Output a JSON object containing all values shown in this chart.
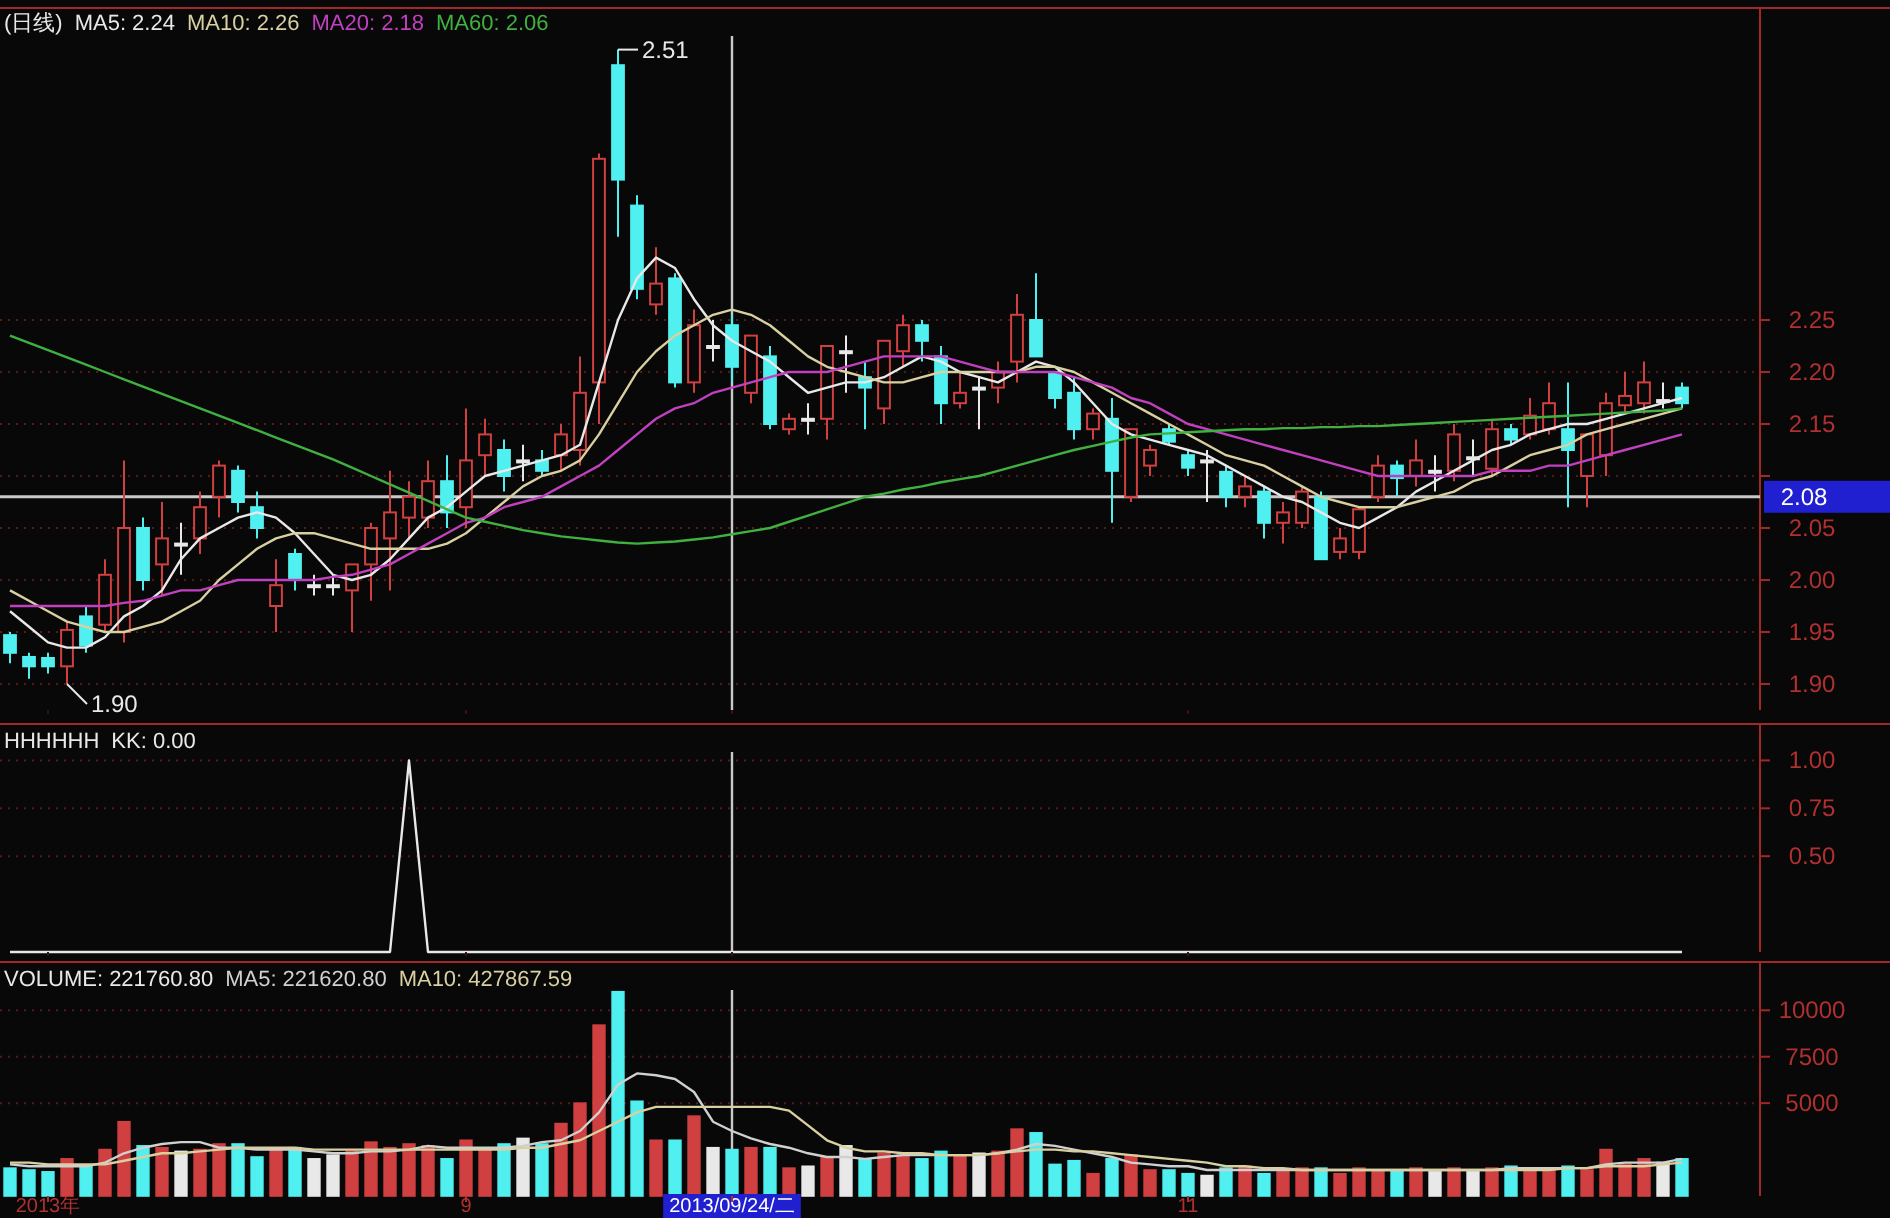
{
  "chart_data": [
    {
      "type": "candlestick",
      "title": "(日线)",
      "tick_labels": "y",
      "grid": "y",
      "ylim": [
        1.875,
        2.55
      ],
      "yticks": [
        {
          "value": 1.9,
          "label": "1.90"
        },
        {
          "value": 1.95,
          "label": "1.95"
        },
        {
          "value": 2.0,
          "label": "2.00"
        },
        {
          "value": 2.05,
          "label": "2.05"
        },
        {
          "value": 2.1,
          "label": null
        },
        {
          "value": 2.15,
          "label": "2.15"
        },
        {
          "value": 2.2,
          "label": "2.20"
        },
        {
          "value": 2.25,
          "label": "2.25"
        }
      ],
      "categories": [
        null,
        null,
        "2013年",
        null,
        null,
        null,
        null,
        null,
        null,
        null,
        null,
        null,
        null,
        null,
        null,
        null,
        null,
        null,
        null,
        null,
        null,
        null,
        null,
        null,
        "9",
        null,
        null,
        null,
        null,
        null,
        null,
        null,
        null,
        null,
        null,
        null,
        null,
        null,
        "2013/09/24/二",
        null,
        null,
        null,
        null,
        null,
        null,
        null,
        null,
        null,
        null,
        null,
        null,
        null,
        null,
        null,
        null,
        null,
        null,
        null,
        null,
        null,
        null,
        null,
        "11",
        null,
        null,
        null,
        null,
        null,
        null,
        null,
        null,
        null,
        null,
        null,
        null,
        null,
        null,
        null,
        null,
        null,
        null,
        null,
        null,
        null,
        null,
        null,
        null,
        null,
        null
      ],
      "ohlc": [
        [
          1.947,
          1.95,
          1.92,
          1.93
        ],
        [
          1.926,
          1.93,
          1.905,
          1.917
        ],
        [
          1.925,
          1.93,
          1.91,
          1.917
        ],
        [
          1.917,
          1.96,
          1.9,
          1.952
        ],
        [
          1.965,
          1.975,
          1.93,
          1.937
        ],
        [
          1.957,
          2.02,
          1.95,
          2.005
        ],
        [
          1.95,
          2.115,
          1.94,
          2.05
        ],
        [
          2.05,
          2.06,
          1.99,
          2.0
        ],
        [
          2.015,
          2.075,
          1.985,
          2.04
        ],
        [
          2.035,
          2.055,
          2.005,
          2.035
        ],
        [
          2.04,
          2.085,
          2.025,
          2.07
        ],
        [
          2.08,
          2.115,
          2.06,
          2.11
        ],
        [
          2.105,
          2.11,
          2.065,
          2.075
        ],
        [
          2.07,
          2.085,
          2.04,
          2.05
        ],
        [
          1.975,
          2.02,
          1.95,
          1.995
        ],
        [
          2.025,
          2.03,
          1.99,
          2.0
        ],
        [
          1.995,
          2.005,
          1.985,
          1.995
        ],
        [
          1.995,
          2.005,
          1.985,
          1.995
        ],
        [
          1.99,
          2.015,
          1.95,
          2.015
        ],
        [
          2.015,
          2.055,
          1.98,
          2.05
        ],
        [
          2.04,
          2.105,
          1.99,
          2.065
        ],
        [
          2.06,
          2.095,
          2.04,
          2.08
        ],
        [
          2.06,
          2.115,
          2.05,
          2.095
        ],
        [
          2.095,
          2.12,
          2.05,
          2.065
        ],
        [
          2.07,
          2.165,
          2.05,
          2.115
        ],
        [
          2.12,
          2.155,
          2.1,
          2.14
        ],
        [
          2.125,
          2.135,
          2.085,
          2.1
        ],
        [
          2.115,
          2.13,
          2.095,
          2.115
        ],
        [
          2.115,
          2.125,
          2.1,
          2.105
        ],
        [
          2.12,
          2.15,
          2.105,
          2.14
        ],
        [
          2.125,
          2.215,
          2.11,
          2.18
        ],
        [
          2.19,
          2.41,
          2.15,
          2.405
        ],
        [
          2.495,
          2.51,
          2.33,
          2.385
        ],
        [
          2.36,
          2.37,
          2.27,
          2.28
        ],
        [
          2.265,
          2.32,
          2.255,
          2.285
        ],
        [
          2.29,
          2.295,
          2.185,
          2.19
        ],
        [
          2.19,
          2.26,
          2.18,
          2.245
        ],
        [
          2.225,
          2.25,
          2.21,
          2.225
        ],
        [
          2.245,
          2.255,
          2.19,
          2.205
        ],
        [
          2.18,
          2.235,
          2.17,
          2.235
        ],
        [
          2.215,
          2.225,
          2.145,
          2.15
        ],
        [
          2.145,
          2.16,
          2.14,
          2.155
        ],
        [
          2.155,
          2.17,
          2.14,
          2.155
        ],
        [
          2.155,
          2.225,
          2.135,
          2.225
        ],
        [
          2.22,
          2.235,
          2.18,
          2.22
        ],
        [
          2.195,
          2.21,
          2.145,
          2.185
        ],
        [
          2.165,
          2.23,
          2.15,
          2.23
        ],
        [
          2.22,
          2.255,
          2.205,
          2.245
        ],
        [
          2.245,
          2.25,
          2.21,
          2.23
        ],
        [
          2.215,
          2.225,
          2.15,
          2.17
        ],
        [
          2.17,
          2.2,
          2.165,
          2.18
        ],
        [
          2.185,
          2.195,
          2.145,
          2.185
        ],
        [
          2.185,
          2.21,
          2.17,
          2.2
        ],
        [
          2.21,
          2.275,
          2.19,
          2.255
        ],
        [
          2.25,
          2.295,
          2.215,
          2.215
        ],
        [
          2.2,
          2.2,
          2.165,
          2.175
        ],
        [
          2.18,
          2.195,
          2.135,
          2.145
        ],
        [
          2.145,
          2.165,
          2.135,
          2.16
        ],
        [
          2.155,
          2.175,
          2.055,
          2.105
        ],
        [
          2.08,
          2.145,
          2.075,
          2.145
        ],
        [
          2.11,
          2.13,
          2.1,
          2.125
        ],
        [
          2.145,
          2.15,
          2.13,
          2.133
        ],
        [
          2.12,
          2.125,
          2.1,
          2.108
        ],
        [
          2.115,
          2.125,
          2.075,
          2.115
        ],
        [
          2.104,
          2.11,
          2.07,
          2.08
        ],
        [
          2.08,
          2.1,
          2.07,
          2.09
        ],
        [
          2.085,
          2.09,
          2.04,
          2.055
        ],
        [
          2.055,
          2.075,
          2.035,
          2.065
        ],
        [
          2.055,
          2.09,
          2.05,
          2.085
        ],
        [
          2.08,
          2.085,
          2.02,
          2.02
        ],
        [
          2.027,
          2.05,
          2.02,
          2.04
        ],
        [
          2.027,
          2.07,
          2.02,
          2.068
        ],
        [
          2.08,
          2.12,
          2.075,
          2.11
        ],
        [
          2.11,
          2.115,
          2.08,
          2.098
        ],
        [
          2.1,
          2.135,
          2.09,
          2.115
        ],
        [
          2.105,
          2.12,
          2.085,
          2.105
        ],
        [
          2.105,
          2.15,
          2.095,
          2.14
        ],
        [
          2.118,
          2.135,
          2.1,
          2.118
        ],
        [
          2.107,
          2.155,
          2.1,
          2.145
        ],
        [
          2.145,
          2.15,
          2.13,
          2.135
        ],
        [
          2.14,
          2.175,
          2.135,
          2.158
        ],
        [
          2.145,
          2.19,
          2.14,
          2.17
        ],
        [
          2.145,
          2.19,
          2.07,
          2.125
        ],
        [
          2.1,
          2.14,
          2.07,
          2.14
        ],
        [
          2.12,
          2.18,
          2.1,
          2.17
        ],
        [
          2.168,
          2.2,
          2.16,
          2.177
        ],
        [
          2.17,
          2.21,
          2.16,
          2.19
        ],
        [
          2.173,
          2.19,
          2.165,
          2.173
        ],
        [
          2.185,
          2.19,
          2.165,
          2.17
        ]
      ],
      "colors": [
        "#50f0f0",
        "#50f0f0",
        "#50f0f0",
        "#d04040",
        "#50f0f0",
        "#d04040",
        "#d04040",
        "#50f0f0",
        "#d04040",
        "#e8e8e8",
        "#d04040",
        "#d04040",
        "#50f0f0",
        "#50f0f0",
        "#d04040",
        "#50f0f0",
        "#e8e8e8",
        "#e8e8e8",
        "#d04040",
        "#d04040",
        "#d04040",
        "#d04040",
        "#d04040",
        "#50f0f0",
        "#d04040",
        "#d04040",
        "#50f0f0",
        "#e8e8e8",
        "#50f0f0",
        "#d04040",
        "#d04040",
        "#d04040",
        "#50f0f0",
        "#50f0f0",
        "#d04040",
        "#50f0f0",
        "#d04040",
        "#e8e8e8",
        "#50f0f0",
        "#d04040",
        "#50f0f0",
        "#d04040",
        "#e8e8e8",
        "#d04040",
        "#e8e8e8",
        "#50f0f0",
        "#d04040",
        "#d04040",
        "#50f0f0",
        "#50f0f0",
        "#d04040",
        "#e8e8e8",
        "#d04040",
        "#d04040",
        "#50f0f0",
        "#50f0f0",
        "#50f0f0",
        "#d04040",
        "#50f0f0",
        "#d04040",
        "#d04040",
        "#50f0f0",
        "#50f0f0",
        "#e8e8e8",
        "#50f0f0",
        "#d04040",
        "#50f0f0",
        "#d04040",
        "#d04040",
        "#50f0f0",
        "#d04040",
        "#d04040",
        "#d04040",
        "#50f0f0",
        "#d04040",
        "#e8e8e8",
        "#d04040",
        "#e8e8e8",
        "#d04040",
        "#50f0f0",
        "#d04040",
        "#d04040",
        "#50f0f0",
        "#d04040",
        "#d04040",
        "#d04040",
        "#d04040",
        "#e8e8e8",
        "#50f0f0"
      ],
      "series": [
        {
          "name": "MA5: 2.24",
          "type": "line",
          "color": "#e8e8e8",
          "values": [
            1.97,
            1.955,
            1.94,
            1.935,
            1.935,
            1.945,
            1.965,
            1.975,
            1.99,
            2.02,
            2.04,
            2.05,
            2.06,
            2.065,
            2.06,
            2.045,
            2.025,
            2.005,
            2.0,
            2.005,
            2.02,
            2.04,
            2.06,
            2.07,
            2.085,
            2.1,
            2.105,
            2.11,
            2.115,
            2.12,
            2.13,
            2.19,
            2.25,
            2.29,
            2.31,
            2.3,
            2.27,
            2.245,
            2.23,
            2.22,
            2.21,
            2.195,
            2.18,
            2.185,
            2.19,
            2.19,
            2.195,
            2.205,
            2.215,
            2.21,
            2.2,
            2.195,
            2.19,
            2.2,
            2.21,
            2.205,
            2.19,
            2.17,
            2.15,
            2.14,
            2.135,
            2.13,
            2.125,
            2.12,
            2.11,
            2.1,
            2.09,
            2.08,
            2.075,
            2.065,
            2.055,
            2.05,
            2.06,
            2.07,
            2.085,
            2.095,
            2.105,
            2.115,
            2.125,
            2.13,
            2.14,
            2.145,
            2.15,
            2.15,
            2.155,
            2.16,
            2.165,
            2.17,
            2.175
          ]
        },
        {
          "name": "MA10: 2.26",
          "type": "line",
          "color": "#d8d0a0",
          "values": [
            1.99,
            1.98,
            1.97,
            1.96,
            1.955,
            1.95,
            1.95,
            1.955,
            1.96,
            1.97,
            1.98,
            2.0,
            2.015,
            2.03,
            2.04,
            2.045,
            2.045,
            2.04,
            2.035,
            2.03,
            2.03,
            2.03,
            2.03,
            2.035,
            2.045,
            2.06,
            2.075,
            2.09,
            2.1,
            2.105,
            2.115,
            2.14,
            2.17,
            2.2,
            2.22,
            2.235,
            2.245,
            2.255,
            2.26,
            2.255,
            2.245,
            2.23,
            2.215,
            2.205,
            2.2,
            2.195,
            2.19,
            2.19,
            2.195,
            2.2,
            2.2,
            2.2,
            2.2,
            2.2,
            2.205,
            2.205,
            2.2,
            2.19,
            2.18,
            2.17,
            2.16,
            2.15,
            2.14,
            2.13,
            2.12,
            2.115,
            2.11,
            2.1,
            2.09,
            2.08,
            2.075,
            2.07,
            2.07,
            2.07,
            2.075,
            2.08,
            2.085,
            2.095,
            2.1,
            2.11,
            2.12,
            2.125,
            2.13,
            2.14,
            2.145,
            2.15,
            2.155,
            2.16,
            2.165
          ]
        },
        {
          "name": "MA20: 2.18",
          "type": "line",
          "color": "#c040c0",
          "values": [
            1.975,
            1.975,
            1.975,
            1.975,
            1.975,
            1.975,
            1.978,
            1.98,
            1.985,
            1.99,
            1.99,
            1.995,
            2.0,
            2.0,
            2.0,
            2.0,
            2.0,
            2.003,
            2.005,
            2.01,
            2.015,
            2.025,
            2.035,
            2.045,
            2.055,
            2.06,
            2.07,
            2.075,
            2.08,
            2.09,
            2.1,
            2.11,
            2.125,
            2.14,
            2.155,
            2.165,
            2.17,
            2.18,
            2.185,
            2.19,
            2.195,
            2.2,
            2.2,
            2.2,
            2.205,
            2.21,
            2.215,
            2.215,
            2.215,
            2.215,
            2.21,
            2.205,
            2.2,
            2.2,
            2.2,
            2.2,
            2.195,
            2.19,
            2.185,
            2.175,
            2.17,
            2.16,
            2.15,
            2.145,
            2.14,
            2.135,
            2.13,
            2.125,
            2.12,
            2.115,
            2.11,
            2.105,
            2.1,
            2.1,
            2.1,
            2.1,
            2.1,
            2.1,
            2.105,
            2.105,
            2.105,
            2.11,
            2.11,
            2.115,
            2.12,
            2.125,
            2.13,
            2.135,
            2.14
          ]
        },
        {
          "name": "MA60: 2.06",
          "type": "line",
          "color": "#40b040",
          "values": [
            2.235,
            2.228,
            2.221,
            2.214,
            2.207,
            2.2,
            2.193,
            2.186,
            2.179,
            2.172,
            2.165,
            2.158,
            2.151,
            2.144,
            2.137,
            2.13,
            2.123,
            2.116,
            2.108,
            2.1,
            2.092,
            2.084,
            2.076,
            2.068,
            2.06,
            2.056,
            2.052,
            2.048,
            2.045,
            2.042,
            2.04,
            2.038,
            2.036,
            2.035,
            2.036,
            2.037,
            2.039,
            2.041,
            2.044,
            2.047,
            2.05,
            2.056,
            2.062,
            2.068,
            2.074,
            2.08,
            2.083,
            2.087,
            2.09,
            2.094,
            2.097,
            2.1,
            2.105,
            2.11,
            2.115,
            2.12,
            2.125,
            2.129,
            2.133,
            2.137,
            2.14,
            2.141,
            2.142,
            2.143,
            2.144,
            2.145,
            2.145,
            2.146,
            2.146,
            2.147,
            2.147,
            2.148,
            2.148,
            2.149,
            2.15,
            2.151,
            2.152,
            2.153,
            2.154,
            2.155,
            2.156,
            2.157,
            2.158,
            2.159,
            2.16,
            2.161,
            2.162,
            2.163,
            2.165
          ]
        }
      ],
      "ref_lines": [
        {
          "axis": "y",
          "value": 2.08,
          "label": "2.08"
        },
        {
          "axis": "x",
          "value": "2013/09/24/二"
        }
      ],
      "annotations": [
        "2.51",
        "1.90"
      ]
    },
    {
      "type": "line",
      "title": "HHHHHH",
      "tick_labels": "y",
      "grid": "y",
      "ylim": [
        0,
        1.19
      ],
      "yticks": [
        {
          "value": 0.5,
          "label": "0.50"
        },
        {
          "value": 0.75,
          "label": "0.75"
        },
        {
          "value": 1,
          "label": "1.00"
        }
      ],
      "categories": [
        null,
        null,
        "2013年",
        null,
        null,
        null,
        null,
        null,
        null,
        null,
        null,
        null,
        null,
        null,
        null,
        null,
        null,
        null,
        null,
        null,
        null,
        null,
        null,
        null,
        "9",
        null,
        null,
        null,
        null,
        null,
        null,
        null,
        null,
        null,
        null,
        null,
        null,
        null,
        "2013/09/24/二",
        null,
        null,
        null,
        null,
        null,
        null,
        null,
        null,
        null,
        null,
        null,
        null,
        null,
        null,
        null,
        null,
        null,
        null,
        null,
        null,
        null,
        null,
        null,
        "11",
        null,
        null,
        null,
        null,
        null,
        null,
        null,
        null,
        null,
        null,
        null,
        null,
        null,
        null,
        null,
        null,
        null,
        null,
        null,
        null,
        null,
        null,
        null,
        null,
        null,
        null
      ],
      "series": [
        {
          "name": "KK: 0.00",
          "color": "#e8e8e8",
          "values": [
            0,
            0,
            0,
            0,
            0,
            0,
            0,
            0,
            0,
            0,
            0,
            0,
            0,
            0,
            0,
            0,
            0,
            0,
            0,
            0,
            0,
            1,
            0,
            0,
            0,
            0,
            0,
            0,
            0,
            0,
            0,
            0,
            0,
            0,
            0,
            0,
            0,
            0,
            0,
            0,
            0,
            0,
            0,
            0,
            0,
            0,
            0,
            0,
            0,
            0,
            0,
            0,
            0,
            0,
            0,
            0,
            0,
            0,
            0,
            0,
            0,
            0,
            0,
            0,
            0,
            0,
            0,
            0,
            0,
            0,
            0,
            0,
            0,
            0,
            0,
            0,
            0,
            0,
            0,
            0,
            0,
            0,
            0,
            0,
            0,
            0,
            0,
            0,
            0
          ]
        }
      ],
      "ref_lines": [
        {
          "axis": "x",
          "value": "2013/09/24/二"
        }
      ]
    },
    {
      "type": "bar",
      "grid": "y",
      "ylim": [
        0,
        12600
      ],
      "yticks": [
        5000,
        7500,
        10000
      ],
      "categories": [
        null,
        null,
        "2013年",
        null,
        null,
        null,
        null,
        null,
        null,
        null,
        null,
        null,
        null,
        null,
        null,
        null,
        null,
        null,
        null,
        null,
        null,
        null,
        null,
        null,
        "9",
        null,
        null,
        null,
        null,
        null,
        null,
        null,
        null,
        null,
        null,
        null,
        null,
        null,
        "2013/09/24/二",
        null,
        null,
        null,
        null,
        null,
        null,
        null,
        null,
        null,
        null,
        null,
        null,
        null,
        null,
        null,
        null,
        null,
        null,
        null,
        null,
        null,
        null,
        null,
        "11",
        null,
        null,
        null,
        null,
        null,
        null,
        null,
        null,
        null,
        null,
        null,
        null,
        null,
        null,
        null,
        null,
        null,
        null,
        null,
        null,
        null,
        null,
        null,
        null,
        null,
        null
      ],
      "series": [
        {
          "name": "VOLUME: 221760.80",
          "colors": [
            "#50f0f0",
            "#50f0f0",
            "#50f0f0",
            "#d04040",
            "#50f0f0",
            "#d04040",
            "#d04040",
            "#50f0f0",
            "#d04040",
            "#e8e8e8",
            "#d04040",
            "#d04040",
            "#50f0f0",
            "#50f0f0",
            "#d04040",
            "#50f0f0",
            "#e8e8e8",
            "#e8e8e8",
            "#d04040",
            "#d04040",
            "#d04040",
            "#d04040",
            "#d04040",
            "#50f0f0",
            "#d04040",
            "#d04040",
            "#50f0f0",
            "#e8e8e8",
            "#50f0f0",
            "#d04040",
            "#d04040",
            "#d04040",
            "#50f0f0",
            "#50f0f0",
            "#d04040",
            "#50f0f0",
            "#d04040",
            "#e8e8e8",
            "#50f0f0",
            "#d04040",
            "#50f0f0",
            "#d04040",
            "#e8e8e8",
            "#d04040",
            "#e8e8e8",
            "#50f0f0",
            "#d04040",
            "#d04040",
            "#50f0f0",
            "#50f0f0",
            "#d04040",
            "#e8e8e8",
            "#d04040",
            "#d04040",
            "#50f0f0",
            "#50f0f0",
            "#50f0f0",
            "#d04040",
            "#50f0f0",
            "#d04040",
            "#d04040",
            "#50f0f0",
            "#50f0f0",
            "#e8e8e8",
            "#50f0f0",
            "#d04040",
            "#50f0f0",
            "#d04040",
            "#d04040",
            "#50f0f0",
            "#d04040",
            "#d04040",
            "#d04040",
            "#50f0f0",
            "#d04040",
            "#e8e8e8",
            "#d04040",
            "#e8e8e8",
            "#d04040",
            "#50f0f0",
            "#d04040",
            "#d04040",
            "#50f0f0",
            "#d04040",
            "#d04040",
            "#d04040",
            "#d04040",
            "#e8e8e8",
            "#50f0f0"
          ],
          "values": [
            1500,
            1400,
            1300,
            2000,
            1600,
            2500,
            4000,
            2700,
            2600,
            2400,
            2500,
            2800,
            2800,
            2100,
            2500,
            2600,
            2000,
            2200,
            2400,
            2900,
            2600,
            2800,
            2700,
            2000,
            3000,
            2500,
            2800,
            3100,
            2800,
            3900,
            5000,
            9200,
            11000,
            5100,
            3000,
            3000,
            4300,
            2600,
            2500,
            2600,
            2600,
            1500,
            1600,
            2100,
            2700,
            2000,
            2300,
            2200,
            2000,
            2400,
            2200,
            2300,
            2400,
            3600,
            3400,
            1700,
            1900,
            1200,
            2000,
            2200,
            1400,
            1400,
            1200,
            1100,
            1500,
            1600,
            1200,
            1300,
            1500,
            1500,
            1200,
            1500,
            1300,
            1400,
            1500,
            1300,
            1500,
            1300,
            1500,
            1600,
            1400,
            1500,
            1600,
            1400,
            2500,
            1700,
            2000,
            1800,
            2000
          ]
        },
        {
          "name": "MA5: 221620.80",
          "type": "line",
          "color": "#d0d0d0",
          "values": [
            1700,
            1600,
            1600,
            1600,
            1600,
            1800,
            2300,
            2600,
            2800,
            2900,
            2900,
            2600,
            2600,
            2500,
            2500,
            2500,
            2400,
            2300,
            2300,
            2400,
            2400,
            2500,
            2700,
            2600,
            2600,
            2600,
            2600,
            2700,
            2900,
            3000,
            3500,
            4500,
            6000,
            6600,
            6500,
            6300,
            5600,
            4000,
            3500,
            3100,
            2800,
            2600,
            2300,
            2100,
            2100,
            2000,
            2100,
            2200,
            2200,
            2200,
            2200,
            2200,
            2300,
            2500,
            2800,
            2700,
            2500,
            2300,
            2100,
            1800,
            1700,
            1600,
            1600,
            1400,
            1400,
            1400,
            1400,
            1400,
            1400,
            1400,
            1400,
            1400,
            1400,
            1400,
            1400,
            1400,
            1400,
            1400,
            1400,
            1500,
            1500,
            1500,
            1500,
            1500,
            1700,
            1800,
            1800,
            1800,
            2000
          ]
        },
        {
          "name": "MA10: 427867.59",
          "type": "line",
          "color": "#d8d0a0",
          "values": [
            1800,
            1800,
            1700,
            1700,
            1700,
            1700,
            1900,
            2100,
            2300,
            2300,
            2400,
            2500,
            2600,
            2600,
            2600,
            2600,
            2500,
            2500,
            2500,
            2500,
            2500,
            2500,
            2500,
            2500,
            2500,
            2500,
            2500,
            2600,
            2600,
            2800,
            3000,
            3500,
            4000,
            4500,
            4800,
            4800,
            4800,
            4800,
            4800,
            4800,
            4800,
            4600,
            3800,
            3000,
            2600,
            2400,
            2400,
            2300,
            2300,
            2200,
            2200,
            2200,
            2300,
            2400,
            2500,
            2500,
            2400,
            2400,
            2300,
            2200,
            2100,
            2000,
            1900,
            1800,
            1600,
            1600,
            1500,
            1500,
            1400,
            1400,
            1400,
            1400,
            1400,
            1400,
            1400,
            1400,
            1400,
            1400,
            1400,
            1400,
            1400,
            1400,
            1500,
            1500,
            1600,
            1600,
            1600,
            1700,
            1800
          ]
        }
      ],
      "ref_lines": [
        {
          "axis": "x",
          "value": "2013/09/24/二"
        }
      ]
    }
  ]
}
